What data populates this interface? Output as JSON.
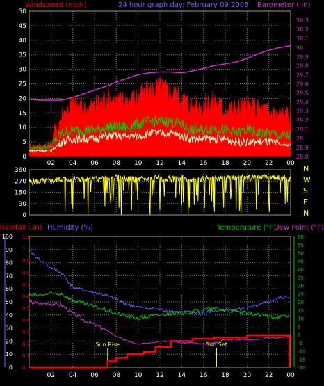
{
  "header": {
    "left_label": "Windspeed (mph)",
    "center_label": "24 hour graph day: February 09 2008",
    "right_label": "Barometer (.in)"
  },
  "lower_header": {
    "rainfall_label": "Rainfall (.in)",
    "humidity_label": "Humidity (%)",
    "temperature_label": "Temperature (°F)",
    "dewpoint_label": "Dew Point (°F)"
  },
  "colors": {
    "wind_gust": "#ff0000",
    "wind_avg": "#00cc00",
    "wind_low": "#ccffcc",
    "barometer": "#cc33cc",
    "direction": "#ffff00",
    "rainfall": "#ff0000",
    "humidity": "#6666ff",
    "temperature": "#00cc00",
    "dewpoint": "#cc33cc",
    "grid": "#777777"
  },
  "chart_data": [
    {
      "type": "line",
      "name": "wind-and-barometer",
      "x_ticks": [
        "02",
        "04",
        "06",
        "08",
        "10",
        "12",
        "14",
        "16",
        "18",
        "20",
        "22",
        "00"
      ],
      "ylim": [
        0,
        50
      ],
      "y_ticks": [
        "0",
        "5",
        "10",
        "15",
        "20",
        "25",
        "30",
        "35",
        "40",
        "45",
        "50"
      ],
      "y2lim": [
        28.8,
        30.4
      ],
      "y2_ticks": [
        "28.8",
        "28.9",
        "29",
        "29.1",
        "29.2",
        "29.3",
        "29.4",
        "29.5",
        "29.6",
        "29.7",
        "29.8",
        "29.9",
        "30",
        "30.1",
        "30.2",
        "30.3"
      ],
      "series": [
        {
          "name": "Barometer",
          "axis": "right",
          "x": [
            0,
            1,
            2,
            3,
            4,
            5,
            6,
            7,
            8,
            9,
            10,
            11,
            12,
            13,
            14,
            15,
            16,
            17,
            18,
            19,
            20,
            21,
            22,
            23,
            24
          ],
          "values": [
            29.43,
            29.42,
            29.42,
            29.42,
            29.45,
            29.49,
            29.53,
            29.57,
            29.62,
            29.66,
            29.7,
            29.72,
            29.73,
            29.73,
            29.72,
            29.74,
            29.77,
            29.8,
            29.82,
            29.84,
            29.88,
            29.93,
            29.97,
            30.0,
            30.02
          ]
        },
        {
          "name": "Gust",
          "x": [
            0,
            1,
            2,
            3,
            4,
            5,
            6,
            7,
            8,
            9,
            10,
            11,
            12,
            13,
            14,
            15,
            16,
            17,
            18,
            19,
            20,
            21,
            22,
            23,
            24
          ],
          "values": [
            3.5,
            3.5,
            4,
            14,
            18,
            16,
            17,
            20,
            19,
            19,
            20,
            22,
            24,
            22,
            20,
            17,
            17,
            19,
            16,
            16,
            17,
            16,
            15,
            14,
            14
          ]
        },
        {
          "name": "Average",
          "x": [
            0,
            1,
            2,
            3,
            4,
            5,
            6,
            7,
            8,
            9,
            10,
            11,
            12,
            13,
            14,
            15,
            16,
            17,
            18,
            19,
            20,
            21,
            22,
            23,
            24
          ],
          "values": [
            3,
            3,
            3.5,
            8,
            9,
            9,
            9,
            10,
            10,
            10,
            11,
            12,
            12,
            12,
            11,
            9,
            9,
            10,
            9,
            8,
            9,
            8,
            8,
            7,
            7
          ]
        },
        {
          "name": "Low",
          "x": [
            0,
            1,
            2,
            3,
            4,
            5,
            6,
            7,
            8,
            9,
            10,
            11,
            12,
            13,
            14,
            15,
            16,
            17,
            18,
            19,
            20,
            21,
            22,
            23,
            24
          ],
          "values": [
            2,
            2,
            2,
            5,
            6,
            6,
            6,
            7,
            7,
            7,
            7,
            8,
            8,
            8,
            7,
            6,
            6,
            6,
            6,
            5,
            5,
            5,
            5,
            4,
            4
          ]
        }
      ]
    },
    {
      "type": "line",
      "name": "wind-direction",
      "x_ticks": [
        "02",
        "04",
        "06",
        "08",
        "10",
        "12",
        "14",
        "16",
        "18",
        "20",
        "22",
        "00"
      ],
      "ylim": [
        0,
        360
      ],
      "y_ticks": [
        "0",
        "90",
        "180",
        "270",
        "360"
      ],
      "compass_labels": [
        "N",
        "W",
        "S",
        "E",
        "N"
      ],
      "series": [
        {
          "name": "Direction",
          "x": [
            0,
            1,
            2,
            3,
            4,
            5,
            6,
            7,
            8,
            9,
            10,
            11,
            12,
            13,
            14,
            15,
            16,
            17,
            18,
            19,
            20,
            21,
            22,
            23,
            24
          ],
          "values": [
            265,
            268,
            270,
            285,
            290,
            280,
            285,
            290,
            295,
            290,
            280,
            290,
            295,
            285,
            290,
            280,
            285,
            290,
            295,
            300,
            295,
            300,
            295,
            300,
            290
          ]
        }
      ]
    },
    {
      "type": "line",
      "name": "rain-humidity-temperature",
      "x_ticks": [
        "02",
        "04",
        "06",
        "08",
        "10",
        "12",
        "14",
        "16",
        "18",
        "20",
        "22",
        "00"
      ],
      "x_tick_notes": [
        "Sun Rise",
        "Sun Set"
      ],
      "sunrise_x": 7.2,
      "sunset_x": 17.2,
      "humidity_lim": [
        0,
        100
      ],
      "humidity_ticks": [
        "0",
        "10",
        "20",
        "30",
        "40",
        "50",
        "60",
        "70",
        "80",
        "90",
        "100"
      ],
      "rain_lim": [
        0,
        1.1
      ],
      "rain_ticks": [
        "0",
        "0.1",
        "0.2",
        "0.3",
        "0.4",
        "0.5",
        "0.6",
        "0.7",
        "0.8",
        "0.9",
        "1",
        "1.1"
      ],
      "temp_lim": [
        -20,
        60
      ],
      "temp_ticks": [
        "-20",
        "-15",
        "-10",
        "-5",
        "0",
        "5",
        "10",
        "15",
        "20",
        "25",
        "30",
        "35",
        "40",
        "45",
        "50",
        "55",
        "60"
      ],
      "series": [
        {
          "name": "Humidity",
          "axis": "humidity",
          "x": [
            0,
            1,
            2,
            3,
            4,
            5,
            6,
            7,
            8,
            9,
            10,
            11,
            12,
            13,
            14,
            15,
            16,
            17,
            18,
            19,
            20,
            21,
            22,
            23,
            24
          ],
          "values": [
            89,
            82,
            76,
            72,
            61,
            59,
            57,
            55,
            52,
            48,
            46,
            45,
            44,
            43,
            42,
            42,
            42,
            43,
            44,
            44,
            45,
            47,
            50,
            53,
            54
          ]
        },
        {
          "name": "Temperature",
          "axis": "temp",
          "x": [
            0,
            1,
            2,
            3,
            4,
            5,
            6,
            7,
            8,
            9,
            10,
            11,
            12,
            13,
            14,
            15,
            16,
            17,
            18,
            19,
            20,
            21,
            22,
            23,
            24
          ],
          "values": [
            24,
            24,
            25,
            25,
            21,
            19,
            17,
            15,
            13,
            11,
            10,
            11,
            12,
            13,
            13,
            14,
            15,
            16,
            15,
            14,
            13,
            12,
            11,
            11,
            11
          ]
        },
        {
          "name": "Dew Point",
          "axis": "temp",
          "x": [
            0,
            1,
            2,
            3,
            4,
            5,
            6,
            7,
            8,
            9,
            10,
            11,
            12,
            13,
            14,
            15,
            16,
            17,
            18,
            19,
            20,
            21,
            22,
            23,
            24
          ],
          "values": [
            20,
            19,
            19,
            18,
            13,
            9,
            6,
            3,
            -1,
            -4,
            -6,
            -5,
            -4,
            -4,
            -5,
            -5,
            -6,
            -5,
            -3,
            -3,
            -3,
            -3,
            -2,
            -2,
            -1
          ]
        },
        {
          "name": "Rainfall",
          "axis": "rain",
          "x": [
            0,
            7.2,
            7.2,
            8.0,
            8.0,
            9.0,
            9.0,
            10.5,
            10.5,
            11.6,
            11.6,
            13.0,
            13.0,
            15.0,
            15.0,
            17.0,
            17.0,
            20.0,
            20.0,
            23.9,
            23.9
          ],
          "values": [
            0,
            0,
            0.05,
            0.05,
            0.08,
            0.08,
            0.11,
            0.11,
            0.13,
            0.13,
            0.17,
            0.17,
            0.22,
            0.22,
            0.24,
            0.24,
            0.25,
            0.25,
            0.27,
            0.27,
            0
          ]
        }
      ]
    }
  ]
}
